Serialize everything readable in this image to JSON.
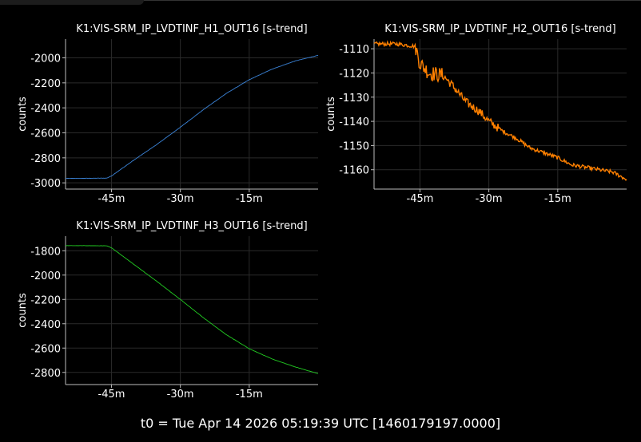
{
  "footer": {
    "t0_text": "t0 = Tue Apr 14 2026 05:19:39 UTC [1460179197.0000]"
  },
  "chart_data": [
    {
      "type": "line",
      "title": "K1:VIS-SRM_IP_LVDTINF_H1_OUT16 [s-trend]",
      "xlabel": "",
      "ylabel": "counts",
      "x_unit": "minutes relative to t0",
      "xlim": [
        -55,
        0
      ],
      "xticks": [
        -45,
        -30,
        -15
      ],
      "xtick_labels": [
        "-45m",
        "-30m",
        "-15m"
      ],
      "ylim": [
        -3050,
        -1850
      ],
      "yticks": [
        -3000,
        -2800,
        -2600,
        -2400,
        -2200,
        -2000
      ],
      "grid": true,
      "color": "#3b84d9",
      "series": [
        {
          "x": [
            -55,
            -49,
            -46,
            -45,
            -40,
            -35,
            -30,
            -25,
            -20,
            -15,
            -10,
            -5,
            0
          ],
          "y": [
            -2965,
            -2963,
            -2962,
            -2945,
            -2815,
            -2690,
            -2555,
            -2415,
            -2285,
            -2175,
            -2090,
            -2025,
            -1980
          ]
        }
      ]
    },
    {
      "type": "line",
      "title": "K1:VIS-SRM_IP_LVDTINF_H2_OUT16 [s-trend]",
      "xlabel": "",
      "ylabel": "counts",
      "x_unit": "minutes relative to t0",
      "xlim": [
        -55,
        0
      ],
      "xticks": [
        -45,
        -30,
        -15
      ],
      "xtick_labels": [
        "-45m",
        "-30m",
        "-15m"
      ],
      "ylim": [
        -1168,
        -1106
      ],
      "yticks": [
        -1160,
        -1150,
        -1140,
        -1130,
        -1120,
        -1110
      ],
      "grid": true,
      "color": "#ff8000",
      "series": [
        {
          "x": [
            -55,
            -50,
            -46,
            -45,
            -43,
            -40,
            -38,
            -35,
            -32,
            -30,
            -27,
            -24,
            -21,
            -18,
            -15,
            -12,
            -9,
            -6,
            -3,
            0
          ],
          "y": [
            -1108,
            -1108,
            -1109,
            -1116,
            -1120,
            -1121,
            -1125,
            -1132,
            -1136,
            -1140,
            -1144,
            -1147,
            -1151,
            -1153,
            -1155,
            -1158,
            -1159,
            -1160,
            -1161,
            -1164
          ]
        }
      ]
    },
    {
      "type": "line",
      "title": "K1:VIS-SRM_IP_LVDTINF_H3_OUT16 [s-trend]",
      "xlabel": "",
      "ylabel": "counts",
      "x_unit": "minutes relative to t0",
      "xlim": [
        -55,
        0
      ],
      "xticks": [
        -45,
        -30,
        -15
      ],
      "xtick_labels": [
        "-45m",
        "-30m",
        "-15m"
      ],
      "ylim": [
        -2900,
        -1680
      ],
      "yticks": [
        -2800,
        -2600,
        -2400,
        -2200,
        -2000,
        -1800
      ],
      "grid": true,
      "color": "#22cc22",
      "series": [
        {
          "x": [
            -55,
            -50,
            -46,
            -45,
            -40,
            -35,
            -30,
            -25,
            -20,
            -15,
            -10,
            -5,
            0
          ],
          "y": [
            -1758,
            -1758,
            -1760,
            -1775,
            -1915,
            -2055,
            -2200,
            -2350,
            -2490,
            -2605,
            -2690,
            -2755,
            -2810
          ]
        }
      ]
    }
  ]
}
